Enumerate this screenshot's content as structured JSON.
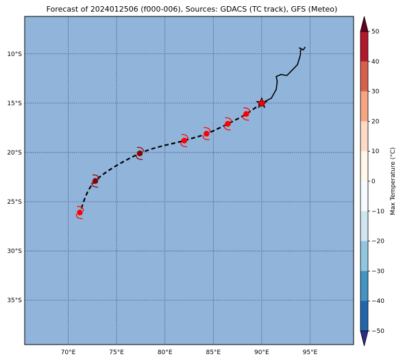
{
  "map": {
    "title": "Forecast of 2024012506 (f000-006), Sources: GDACS (TC track), GFS (Meteo)",
    "lat_ticks": [
      "10°S",
      "15°S",
      "20°S",
      "25°S",
      "30°S",
      "35°S"
    ],
    "lon_ticks": [
      "70°E",
      "75°E",
      "80°E",
      "85°E",
      "90°E",
      "95°E"
    ],
    "ocean_color": "#91b4da",
    "track_color": "#000000",
    "track_style": "dashed",
    "lon_range": [
      65.5,
      99.5
    ],
    "lat_range": [
      -39.5,
      -6.2
    ]
  },
  "track_points": [
    {
      "lon": 90.0,
      "lat": -15.0,
      "marker": "star",
      "color": "#ff0000"
    },
    {
      "lon": 88.4,
      "lat": -16.1,
      "marker": "cyclone",
      "color": "#ff0000"
    },
    {
      "lon": 86.5,
      "lat": -17.1,
      "marker": "cyclone",
      "color": "#ff0000"
    },
    {
      "lon": 84.3,
      "lat": -18.1,
      "marker": "cyclone",
      "color": "#ff0000"
    },
    {
      "lon": 82.0,
      "lat": -18.8,
      "marker": "cyclone",
      "color": "#ff0000"
    },
    {
      "lon": 77.4,
      "lat": -20.1,
      "marker": "cyclone",
      "color": "#8b0000"
    },
    {
      "lon": 72.8,
      "lat": -22.9,
      "marker": "cyclone",
      "color": "#8b0000"
    },
    {
      "lon": 71.2,
      "lat": -26.1,
      "marker": "cyclone",
      "color": "#ff0000"
    }
  ],
  "past_track": [
    [
      90.0,
      -15.0
    ],
    [
      91.0,
      -14.5
    ],
    [
      91.5,
      -13.6
    ],
    [
      91.6,
      -12.8
    ],
    [
      91.5,
      -12.3
    ],
    [
      92.0,
      -12.1
    ],
    [
      92.6,
      -12.2
    ],
    [
      93.1,
      -11.7
    ],
    [
      93.7,
      -11.1
    ],
    [
      94.0,
      -10.1
    ],
    [
      94.0,
      -9.7
    ],
    [
      94.1,
      -9.5
    ],
    [
      93.9,
      -9.4
    ],
    [
      94.3,
      -9.6
    ],
    [
      94.5,
      -9.3
    ]
  ],
  "colorbar": {
    "label": "Max Temperature (°C)",
    "ticks": [
      "50",
      "40",
      "30",
      "20",
      "10",
      "0",
      "−10",
      "−20",
      "−30",
      "−40",
      "−50"
    ],
    "colors": [
      "#67001f",
      "#b2182b",
      "#d6604d",
      "#f4a582",
      "#fddbc7",
      "#fff6ec",
      "#f7fbff",
      "#d1e5f0",
      "#92c5de",
      "#4393c3",
      "#2166ac",
      "#2c2c8c"
    ]
  }
}
